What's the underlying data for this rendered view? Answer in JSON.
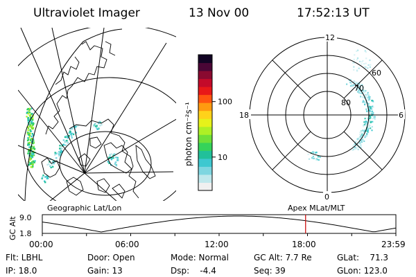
{
  "header": {
    "instrument": "Ultraviolet Imager",
    "date": "13 Nov 00",
    "time": "17:52:13 UT"
  },
  "geo_panel": {
    "label": "Geographic Lat/Lon"
  },
  "colorbar": {
    "unit_label": "photon cm⁻²s⁻¹",
    "tick_labels": [
      "100",
      "10"
    ],
    "tick_values": [
      100,
      10
    ],
    "scale": "log",
    "range": [
      2.5,
      700
    ],
    "colors": [
      "#f0f0f0",
      "#bfe8ec",
      "#7ed6e0",
      "#3ec8d0",
      "#21c09a",
      "#35d35a",
      "#6fe038",
      "#aef025",
      "#e6f21a",
      "#ffd21a",
      "#ff9a10",
      "#ff5510",
      "#e81818",
      "#c40a2a",
      "#8a0a30",
      "#4a0636",
      "#120424"
    ]
  },
  "polar_panel": {
    "label": "Apex MLat/MLT",
    "mlt_labels": [
      "12",
      "18",
      "6",
      "0"
    ],
    "mlat_labels": [
      "60",
      "70",
      "80"
    ]
  },
  "timeline": {
    "y_axis_label": "GC Alt",
    "y_tick_labels": [
      "9.0",
      "1.8"
    ],
    "x_tick_labels": [
      "00:00",
      "06:00",
      "12:00",
      "18:00",
      "23:59"
    ],
    "current_time_hours": 17.87,
    "marker_color": "#cc1111"
  },
  "status": {
    "filter": "Flt: LBHL",
    "ip": "IP: 18.0",
    "door": "Door: Open",
    "gain": "Gain: 13",
    "mode": "Mode: Normal",
    "dsp": "Dsp:    -4.4",
    "gc_alt": "GC Alt: 7.7 Re",
    "seq": "Seq: 39",
    "glat": "GLat:    71.3",
    "glon": "GLon: 123.0"
  }
}
